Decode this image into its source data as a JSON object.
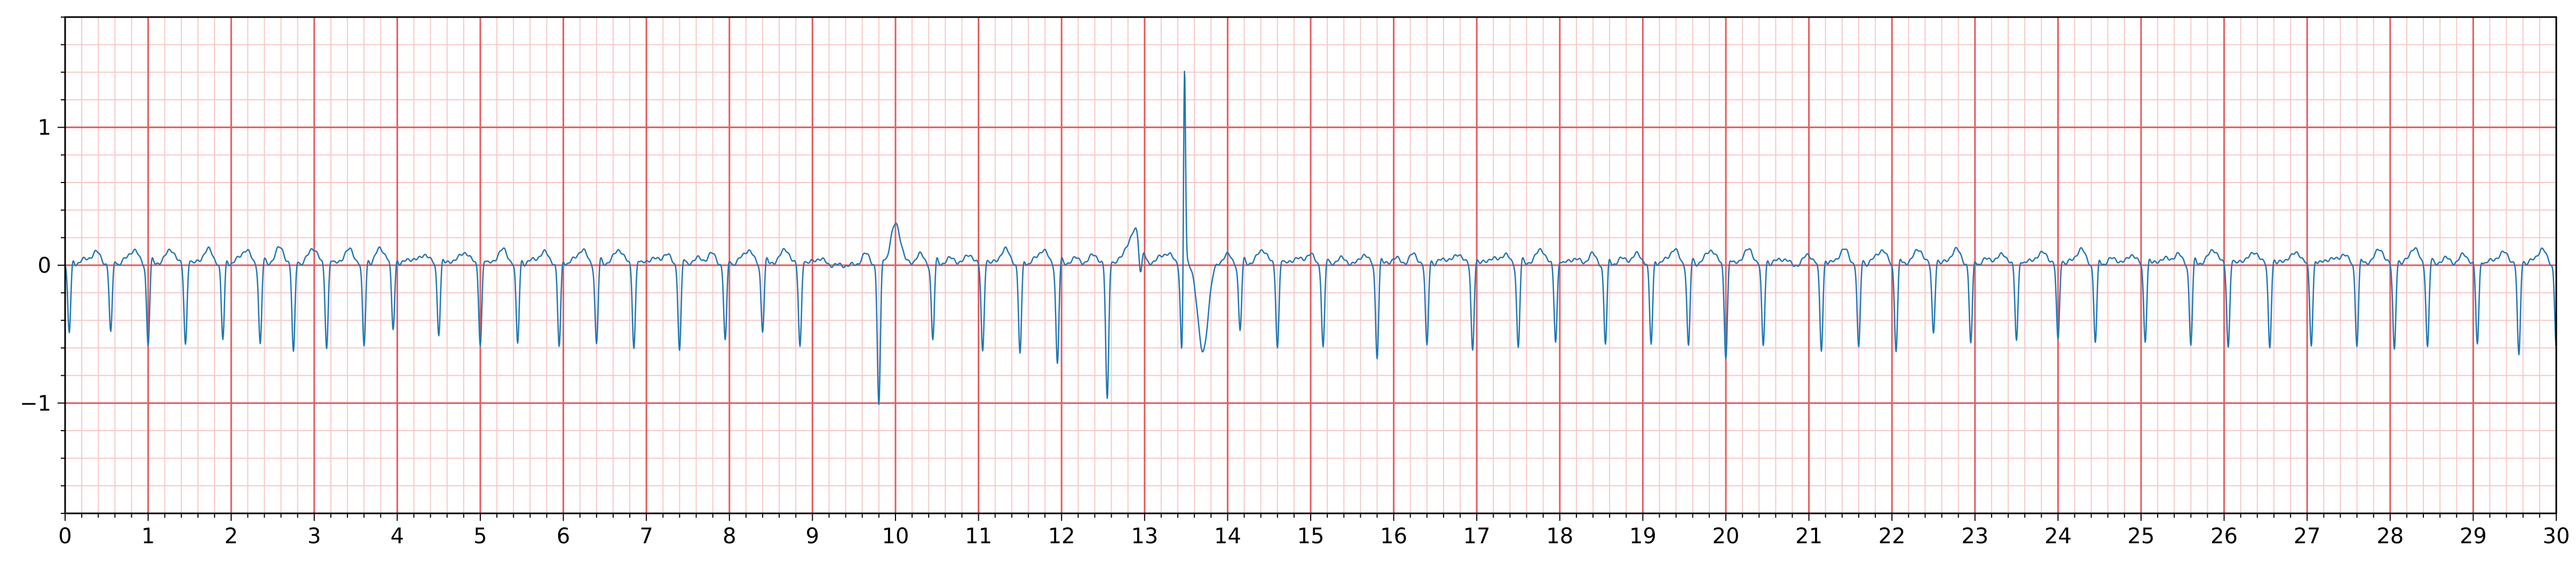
{
  "chart_data": {
    "type": "line",
    "title": "",
    "xlabel": "",
    "ylabel": "",
    "xlim": [
      0,
      30
    ],
    "ylim": [
      -1.8,
      1.8
    ],
    "grid": {
      "major": true,
      "minor": true,
      "major_x_step": 1,
      "major_y_step": 1,
      "minor_x_step": 0.2,
      "minor_y_step": 0.2
    },
    "x_ticks": [
      "0",
      "1",
      "2",
      "3",
      "4",
      "5",
      "6",
      "7",
      "8",
      "9",
      "10",
      "11",
      "12",
      "13",
      "14",
      "15",
      "16",
      "17",
      "18",
      "19",
      "20",
      "21",
      "22",
      "23",
      "24",
      "25",
      "26",
      "27",
      "28",
      "29",
      "30"
    ],
    "y_ticks": [
      {
        "value": 1,
        "label": "1"
      },
      {
        "value": 0,
        "label": "0"
      },
      {
        "value": -1,
        "label": "−1"
      }
    ],
    "colors": {
      "trace": "#1f77b4",
      "major_grid": "#e8595b",
      "minor_grid": "#f8c8c8",
      "axis": "#000000"
    },
    "series": [
      {
        "beat_times": [
          0.05,
          0.55,
          1.0,
          1.45,
          1.9,
          2.35,
          2.75,
          3.15,
          3.6,
          3.95,
          4.5,
          5.0,
          5.45,
          5.95,
          6.4,
          6.85,
          7.4,
          7.95,
          8.4,
          8.85,
          9.8,
          10.45,
          11.05,
          11.5,
          11.95,
          12.55,
          12.95,
          13.45,
          14.15,
          14.6,
          15.15,
          15.8,
          16.4,
          16.95,
          17.5,
          17.95,
          18.55,
          19.1,
          19.55,
          20.0,
          20.45,
          21.15,
          21.6,
          22.05,
          22.5,
          22.95,
          23.5,
          24.0,
          24.45,
          25.05,
          25.6,
          26.05,
          26.55,
          27.05,
          27.6,
          28.05,
          28.45,
          29.05,
          29.55,
          30.0
        ],
        "beat_depths": [
          -0.5,
          -0.5,
          -0.58,
          -0.58,
          -0.55,
          -0.58,
          -0.65,
          -0.6,
          -0.6,
          -0.48,
          -0.5,
          -0.58,
          -0.58,
          -0.6,
          -0.58,
          -0.6,
          -0.62,
          -0.56,
          -0.48,
          -0.6,
          -1.03,
          -0.55,
          -0.63,
          -0.65,
          -0.72,
          -0.98,
          -0.2,
          -0.65,
          -0.48,
          -0.6,
          -0.6,
          -0.67,
          -0.6,
          -0.62,
          -0.6,
          -0.56,
          -0.58,
          -0.58,
          -0.6,
          -0.67,
          -0.6,
          -0.62,
          -0.62,
          -0.62,
          -0.5,
          -0.58,
          -0.55,
          -0.55,
          -0.57,
          -0.55,
          -0.58,
          -0.6,
          -0.6,
          -0.58,
          -0.58,
          -0.62,
          -0.6,
          -0.58,
          -0.67,
          -0.6
        ],
        "t_wave_peak": 0.08,
        "events": [
          {
            "t": 10.0,
            "value": 0.25
          },
          {
            "t": 12.9,
            "value": 0.25
          },
          {
            "t": 13.48,
            "value": 1.53
          },
          {
            "t": 13.7,
            "value": -0.68
          }
        ]
      }
    ]
  }
}
